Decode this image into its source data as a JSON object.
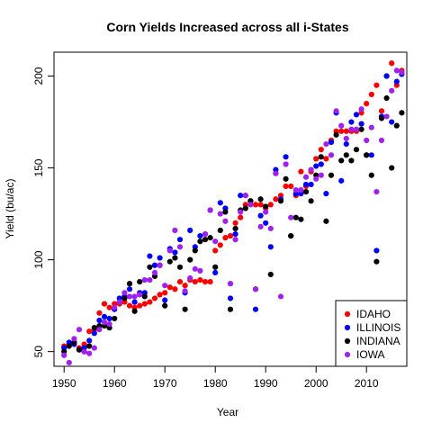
{
  "chart_data": {
    "type": "scatter",
    "title": "Corn Yields Increased across all i-States",
    "xlabel": "Year",
    "ylabel": "Yield (bu/ac)",
    "xlim": [
      1948,
      2018
    ],
    "ylim": [
      42,
      213
    ],
    "xticks": [
      1950,
      1960,
      1970,
      1980,
      1990,
      2000,
      2010
    ],
    "yticks": [
      50,
      100,
      150,
      200
    ],
    "legend_position": "bottom-right",
    "grid": false,
    "series": [
      {
        "name": "IDAHO",
        "color": "#ff0000",
        "points": [
          [
            1950,
            53
          ],
          [
            1951,
            54
          ],
          [
            1952,
            55
          ],
          [
            1953,
            52
          ],
          [
            1954,
            54
          ],
          [
            1955,
            61
          ],
          [
            1956,
            62
          ],
          [
            1957,
            71
          ],
          [
            1958,
            76
          ],
          [
            1959,
            74
          ],
          [
            1960,
            76
          ],
          [
            1961,
            76
          ],
          [
            1962,
            77
          ],
          [
            1963,
            75
          ],
          [
            1964,
            74
          ],
          [
            1965,
            75
          ],
          [
            1966,
            76
          ],
          [
            1967,
            77
          ],
          [
            1968,
            79
          ],
          [
            1969,
            81
          ],
          [
            1970,
            82
          ],
          [
            1971,
            85
          ],
          [
            1972,
            84
          ],
          [
            1973,
            88
          ],
          [
            1974,
            86
          ],
          [
            1975,
            89
          ],
          [
            1976,
            88
          ],
          [
            1977,
            89
          ],
          [
            1978,
            88
          ],
          [
            1979,
            88
          ],
          [
            1980,
            105
          ],
          [
            1981,
            108
          ],
          [
            1982,
            112
          ],
          [
            1983,
            113
          ],
          [
            1984,
            120
          ],
          [
            1985,
            123
          ],
          [
            1986,
            130
          ],
          [
            1987,
            132
          ],
          [
            1988,
            130
          ],
          [
            1989,
            130
          ],
          [
            1990,
            128
          ],
          [
            1991,
            130
          ],
          [
            1992,
            133
          ],
          [
            1993,
            135
          ],
          [
            1994,
            140
          ],
          [
            1995,
            140
          ],
          [
            1996,
            135
          ],
          [
            1997,
            148
          ],
          [
            1998,
            140
          ],
          [
            1999,
            148
          ],
          [
            2000,
            155
          ],
          [
            2001,
            160
          ],
          [
            2002,
            155
          ],
          [
            2003,
            165
          ],
          [
            2004,
            170
          ],
          [
            2005,
            170
          ],
          [
            2006,
            170
          ],
          [
            2007,
            170
          ],
          [
            2008,
            170
          ],
          [
            2009,
            180
          ],
          [
            2010,
            185
          ],
          [
            2011,
            190
          ],
          [
            2012,
            195
          ],
          [
            2013,
            181
          ],
          [
            2014,
            200
          ],
          [
            2015,
            207
          ],
          [
            2016,
            195
          ],
          [
            2017,
            203
          ]
        ]
      },
      {
        "name": "ILLINOIS",
        "color": "#0000ff",
        "points": [
          [
            1950,
            52
          ],
          [
            1951,
            55
          ],
          [
            1952,
            54
          ],
          [
            1953,
            51
          ],
          [
            1954,
            52
          ],
          [
            1955,
            56
          ],
          [
            1956,
            60
          ],
          [
            1957,
            67
          ],
          [
            1958,
            69
          ],
          [
            1959,
            68
          ],
          [
            1960,
            73
          ],
          [
            1961,
            79
          ],
          [
            1962,
            80
          ],
          [
            1963,
            84
          ],
          [
            1964,
            77
          ],
          [
            1965,
            82
          ],
          [
            1966,
            82
          ],
          [
            1967,
            102
          ],
          [
            1968,
            97
          ],
          [
            1969,
            101
          ],
          [
            1970,
            78
          ],
          [
            1971,
            106
          ],
          [
            1972,
            104
          ],
          [
            1973,
            111
          ],
          [
            1974,
            82
          ],
          [
            1975,
            116
          ],
          [
            1976,
            107
          ],
          [
            1977,
            113
          ],
          [
            1978,
            114
          ],
          [
            1979,
            127
          ],
          [
            1980,
            93
          ],
          [
            1981,
            131
          ],
          [
            1982,
            128
          ],
          [
            1983,
            79
          ],
          [
            1984,
            114
          ],
          [
            1985,
            135
          ],
          [
            1986,
            135
          ],
          [
            1987,
            132
          ],
          [
            1988,
            73
          ],
          [
            1989,
            124
          ],
          [
            1990,
            120
          ],
          [
            1991,
            107
          ],
          [
            1992,
            149
          ],
          [
            1993,
            133
          ],
          [
            1994,
            156
          ],
          [
            1995,
            113
          ],
          [
            1996,
            136
          ],
          [
            1997,
            136
          ],
          [
            1998,
            141
          ],
          [
            1999,
            141
          ],
          [
            2000,
            151
          ],
          [
            2001,
            152
          ],
          [
            2002,
            136
          ],
          [
            2003,
            164
          ],
          [
            2004,
            180
          ],
          [
            2005,
            143
          ],
          [
            2006,
            163
          ],
          [
            2007,
            175
          ],
          [
            2008,
            179
          ],
          [
            2009,
            174
          ],
          [
            2010,
            157
          ],
          [
            2011,
            157
          ],
          [
            2012,
            105
          ],
          [
            2013,
            178
          ],
          [
            2014,
            200
          ],
          [
            2015,
            175
          ],
          [
            2016,
            197
          ],
          [
            2017,
            201
          ]
        ]
      },
      {
        "name": "INDIANA",
        "color": "#000000",
        "points": [
          [
            1950,
            50
          ],
          [
            1951,
            53
          ],
          [
            1952,
            55
          ],
          [
            1953,
            51
          ],
          [
            1954,
            50
          ],
          [
            1955,
            53
          ],
          [
            1956,
            63
          ],
          [
            1957,
            64
          ],
          [
            1958,
            64
          ],
          [
            1959,
            63
          ],
          [
            1960,
            68
          ],
          [
            1961,
            77
          ],
          [
            1962,
            79
          ],
          [
            1963,
            87
          ],
          [
            1964,
            72
          ],
          [
            1965,
            88
          ],
          [
            1966,
            80
          ],
          [
            1967,
            96
          ],
          [
            1968,
            91
          ],
          [
            1969,
            97
          ],
          [
            1970,
            75
          ],
          [
            1971,
            99
          ],
          [
            1972,
            101
          ],
          [
            1973,
            96
          ],
          [
            1974,
            73
          ],
          [
            1975,
            100
          ],
          [
            1976,
            105
          ],
          [
            1977,
            110
          ],
          [
            1978,
            111
          ],
          [
            1979,
            112
          ],
          [
            1980,
            96
          ],
          [
            1981,
            116
          ],
          [
            1982,
            126
          ],
          [
            1983,
            73
          ],
          [
            1984,
            117
          ],
          [
            1985,
            127
          ],
          [
            1986,
            128
          ],
          [
            1987,
            132
          ],
          [
            1988,
            84
          ],
          [
            1989,
            133
          ],
          [
            1990,
            129
          ],
          [
            1991,
            92
          ],
          [
            1992,
            147
          ],
          [
            1993,
            132
          ],
          [
            1994,
            144
          ],
          [
            1995,
            113
          ],
          [
            1996,
            123
          ],
          [
            1997,
            122
          ],
          [
            1998,
            137
          ],
          [
            1999,
            132
          ],
          [
            2000,
            146
          ],
          [
            2001,
            156
          ],
          [
            2002,
            121
          ],
          [
            2003,
            146
          ],
          [
            2004,
            168
          ],
          [
            2005,
            154
          ],
          [
            2006,
            157
          ],
          [
            2007,
            154
          ],
          [
            2008,
            160
          ],
          [
            2009,
            171
          ],
          [
            2010,
            157
          ],
          [
            2011,
            146
          ],
          [
            2012,
            99
          ],
          [
            2013,
            177
          ],
          [
            2014,
            188
          ],
          [
            2015,
            150
          ],
          [
            2016,
            173
          ],
          [
            2017,
            180
          ]
        ]
      },
      {
        "name": "IOWA",
        "color": "#a020f0",
        "points": [
          [
            1950,
            48
          ],
          [
            1951,
            44
          ],
          [
            1952,
            57
          ],
          [
            1953,
            62
          ],
          [
            1954,
            50
          ],
          [
            1955,
            49
          ],
          [
            1956,
            52
          ],
          [
            1957,
            62
          ],
          [
            1958,
            66
          ],
          [
            1959,
            65
          ],
          [
            1960,
            74
          ],
          [
            1961,
            77
          ],
          [
            1962,
            82
          ],
          [
            1963,
            80
          ],
          [
            1964,
            80
          ],
          [
            1965,
            81
          ],
          [
            1966,
            89
          ],
          [
            1967,
            89
          ],
          [
            1968,
            93
          ],
          [
            1969,
            97
          ],
          [
            1970,
            86
          ],
          [
            1971,
            105
          ],
          [
            1972,
            116
          ],
          [
            1973,
            107
          ],
          [
            1974,
            83
          ],
          [
            1975,
            90
          ],
          [
            1976,
            95
          ],
          [
            1977,
            94
          ],
          [
            1978,
            114
          ],
          [
            1979,
            127
          ],
          [
            1980,
            110
          ],
          [
            1981,
            125
          ],
          [
            1982,
            121
          ],
          [
            1983,
            87
          ],
          [
            1984,
            111
          ],
          [
            1985,
            126
          ],
          [
            1986,
            135
          ],
          [
            1987,
            130
          ],
          [
            1988,
            84
          ],
          [
            1989,
            118
          ],
          [
            1990,
            126
          ],
          [
            1991,
            117
          ],
          [
            1992,
            147
          ],
          [
            1993,
            80
          ],
          [
            1994,
            152
          ],
          [
            1995,
            123
          ],
          [
            1996,
            138
          ],
          [
            1997,
            138
          ],
          [
            1998,
            145
          ],
          [
            1999,
            149
          ],
          [
            2000,
            144
          ],
          [
            2001,
            146
          ],
          [
            2002,
            163
          ],
          [
            2003,
            157
          ],
          [
            2004,
            181
          ],
          [
            2005,
            173
          ],
          [
            2006,
            166
          ],
          [
            2007,
            171
          ],
          [
            2008,
            171
          ],
          [
            2009,
            182
          ],
          [
            2010,
            165
          ],
          [
            2011,
            172
          ],
          [
            2012,
            137
          ],
          [
            2013,
            165
          ],
          [
            2014,
            178
          ],
          [
            2015,
            192
          ],
          [
            2016,
            203
          ],
          [
            2017,
            202
          ]
        ]
      }
    ]
  }
}
